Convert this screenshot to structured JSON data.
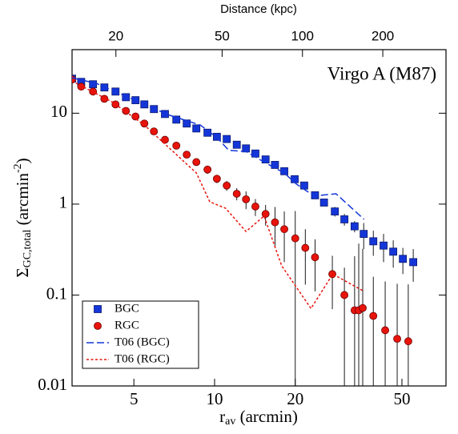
{
  "chart_data": {
    "type": "scatter",
    "annotation": "Virgo A (M87)",
    "x_label": [
      "r",
      "av",
      " (arcmin)"
    ],
    "y_label": [
      "Σ",
      "GC,total",
      " (arcmin",
      "-2",
      ")"
    ],
    "x2_label": "Distance (kpc)",
    "xscale": "log",
    "yscale": "log",
    "xlim": [
      2.94,
      73
    ],
    "ylim": [
      0.01,
      50
    ],
    "xticks": [
      5,
      10,
      20,
      50
    ],
    "yticks": [
      0.01,
      0.1,
      1,
      10
    ],
    "x2lim": [
      13.7,
      345
    ],
    "x2ticks": [
      20,
      50,
      100,
      200
    ],
    "legend": "lower left",
    "series": [
      {
        "name": "BGC",
        "style": "square",
        "color": "#1436d8",
        "x": [
          2.94,
          3.18,
          3.52,
          3.88,
          4.27,
          4.67,
          5.07,
          5.47,
          5.94,
          6.53,
          7.2,
          7.87,
          8.55,
          9.41,
          10.2,
          11.1,
          12.1,
          13.1,
          14.2,
          15.5,
          16.8,
          18.2,
          19.9,
          21.6,
          23.7,
          25.6,
          28.1,
          30.5,
          33.3,
          36.0,
          39.1,
          42.7,
          46.4,
          50.4,
          55.1
        ],
        "values": [
          24.0,
          22.1,
          20.8,
          19.2,
          17.3,
          15.0,
          13.9,
          12.5,
          11.1,
          9.8,
          8.5,
          7.7,
          6.8,
          6.1,
          5.5,
          5.2,
          4.5,
          4.1,
          3.6,
          3.1,
          2.7,
          2.3,
          1.88,
          1.6,
          1.25,
          1.04,
          0.83,
          0.68,
          0.57,
          0.47,
          0.39,
          0.35,
          0.3,
          0.25,
          0.23
        ],
        "errors": [
          1.5,
          1.3,
          1.2,
          1.1,
          1.0,
          0.9,
          0.8,
          0.7,
          0.6,
          0.5,
          0.45,
          0.4,
          0.35,
          0.3,
          0.3,
          0.25,
          0.25,
          0.2,
          0.2,
          0.18,
          0.15,
          0.15,
          0.12,
          0.1,
          0.1,
          0.09,
          0.1,
          0.1,
          0.08,
          0.15,
          0.12,
          0.12,
          0.1,
          0.08,
          0.09
        ]
      },
      {
        "name": "RGC",
        "style": "circle",
        "color": "#e8140c",
        "x": [
          2.94,
          3.18,
          3.52,
          3.88,
          4.27,
          4.67,
          5.07,
          5.47,
          5.94,
          6.53,
          7.2,
          7.87,
          8.55,
          9.41,
          10.2,
          11.1,
          12.1,
          13.1,
          14.2,
          15.5,
          16.8,
          18.2,
          20.0,
          21.8,
          23.7,
          27.5,
          30.5,
          33.3,
          34.5,
          35.7,
          39.1,
          43.3,
          48.0,
          52.8
        ],
        "values": [
          23.5,
          19.6,
          17.3,
          14.4,
          12.5,
          10.6,
          9.2,
          7.7,
          6.3,
          5.1,
          4.4,
          3.5,
          2.9,
          2.4,
          1.9,
          1.6,
          1.3,
          1.13,
          0.94,
          0.78,
          0.63,
          0.53,
          0.42,
          0.33,
          0.26,
          0.17,
          0.1,
          0.068,
          0.068,
          0.072,
          0.059,
          0.041,
          0.033,
          0.031
        ],
        "errors": [
          1.2,
          1.0,
          0.9,
          0.8,
          0.7,
          0.6,
          0.5,
          0.45,
          0.4,
          0.35,
          0.3,
          0.3,
          0.25,
          0.25,
          0.2,
          0.2,
          0.2,
          0.25,
          0.2,
          0.2,
          0.3,
          0.3,
          0.42,
          0.2,
          0.15,
          0.1,
          0.1,
          0.2,
          0.3,
          0.25,
          0.1,
          0.1,
          0.1,
          0.1
        ]
      },
      {
        "name": "T06 (BGC)",
        "style": "dashed",
        "color": "#1436d8",
        "x": [
          2.94,
          3.62,
          4.76,
          6.72,
          8.85,
          10.2,
          11.3,
          13.1,
          15.3,
          18.2,
          20.2,
          23.5,
          28.4,
          36.1
        ],
        "values": [
          24.5,
          21.3,
          15.0,
          9.6,
          7.4,
          5.4,
          3.9,
          3.8,
          2.9,
          2.2,
          1.66,
          1.23,
          1.3,
          0.68
        ]
      },
      {
        "name": "T06 (RGC)",
        "style": "dotted",
        "color": "#e8140c",
        "x": [
          2.94,
          4.15,
          5.47,
          8.55,
          9.6,
          11.0,
          13.1,
          15.3,
          17.8,
          22.9,
          27.6,
          36.1
        ],
        "values": [
          22.6,
          13.3,
          7.4,
          2.2,
          1.06,
          0.9,
          0.5,
          0.74,
          0.21,
          0.071,
          0.17,
          0.11
        ]
      }
    ]
  }
}
